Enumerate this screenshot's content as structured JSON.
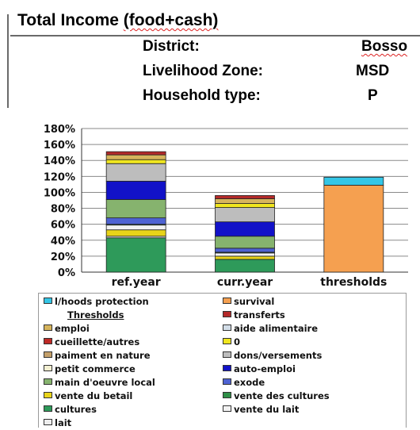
{
  "header": {
    "title": "Total Income (food+cash)",
    "district_label": "District:",
    "district_value": "Bosso",
    "zone_label": "Livelihood Zone:",
    "zone_value": "MSD",
    "household_label": "Household type:",
    "household_value": "P"
  },
  "chart_data": {
    "type": "bar",
    "stacked": true,
    "categories": [
      "ref.year",
      "curr.year",
      "thresholds"
    ],
    "ylim": [
      0,
      180
    ],
    "yticks": [
      0,
      20,
      40,
      60,
      80,
      100,
      120,
      140,
      160,
      180
    ],
    "ytick_labels": [
      "0%",
      "20%",
      "40%",
      "60%",
      "80%",
      "100%",
      "120%",
      "140%",
      "160%",
      "180%"
    ],
    "legend_header": "Thresholds",
    "legend_position": "bottom",
    "series": [
      {
        "name": "cultures",
        "color": "#2e9a5a",
        "values": [
          43,
          16,
          0
        ]
      },
      {
        "name": "lait",
        "color": "#eeeeee",
        "values": [
          2,
          0,
          0
        ]
      },
      {
        "name": "vente du betail",
        "color": "#e8d41a",
        "values": [
          8,
          4,
          0
        ]
      },
      {
        "name": "vente du lait",
        "color": "#f2f2f2",
        "values": [
          6,
          4,
          0
        ]
      },
      {
        "name": "vente des cultures",
        "color": "#2f8f47",
        "values": [
          1,
          1,
          0
        ]
      },
      {
        "name": "exode",
        "color": "#4e63d2",
        "values": [
          8,
          5,
          0
        ]
      },
      {
        "name": "main d'oeuvre local",
        "color": "#86b36e",
        "values": [
          23,
          15,
          0
        ]
      },
      {
        "name": "auto-emploi",
        "color": "#1212c8",
        "values": [
          23,
          18,
          0
        ]
      },
      {
        "name": "petit commerce",
        "color": "#f3f0d2",
        "values": [
          0,
          0,
          0
        ]
      },
      {
        "name": "dons/versements",
        "color": "#bdbdbd",
        "values": [
          22,
          18,
          0
        ]
      },
      {
        "name": "paiment en nature",
        "color": "#c4a06a",
        "values": [
          0,
          0,
          0
        ]
      },
      {
        "name": "0",
        "color": "#f0e61e",
        "values": [
          5,
          5,
          0
        ]
      },
      {
        "name": "cueillette/autres",
        "color": "#bf2a26",
        "values": [
          0,
          0,
          0
        ]
      },
      {
        "name": "aide alimentaire",
        "color": "#d2dde8",
        "values": [
          0,
          0,
          0
        ]
      },
      {
        "name": "emploi",
        "color": "#d6b45c",
        "values": [
          6,
          6,
          0
        ]
      },
      {
        "name": "transferts",
        "color": "#b42a2a",
        "values": [
          4,
          4,
          0
        ]
      },
      {
        "name": "survival",
        "color": "#f5a050",
        "values": [
          0,
          0,
          109
        ]
      },
      {
        "name": "l/hoods protection",
        "color": "#34c6e6",
        "values": [
          0,
          0,
          10
        ]
      }
    ],
    "legend": [
      [
        "l/hoods protection",
        "survival"
      ],
      [
        "Thresholds",
        "transferts"
      ],
      [
        "emploi",
        "aide alimentaire"
      ],
      [
        "cueillette/autres",
        "0"
      ],
      [
        "paiment en nature",
        "dons/versements"
      ],
      [
        "petit commerce",
        "auto-emploi"
      ],
      [
        "main d'oeuvre local",
        "exode"
      ],
      [
        "vente du betail",
        "vente des cultures"
      ],
      [
        "cultures",
        "vente du lait"
      ],
      [
        "lait",
        ""
      ]
    ]
  }
}
